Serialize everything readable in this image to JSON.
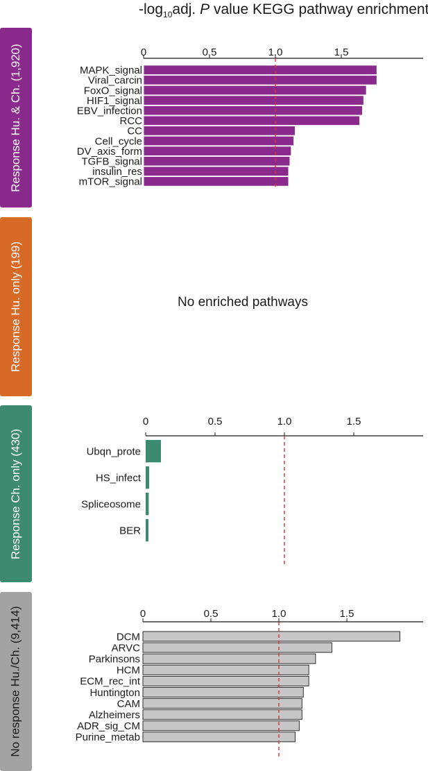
{
  "title": {
    "prefix": "-log",
    "subscript": "10",
    "middle": "adj. ",
    "italic": "P",
    "suffix": " value KEGG pathway enrichment"
  },
  "threshold_line": {
    "value": 1.0,
    "color": "#e03030",
    "style": "dashed"
  },
  "panels": [
    {
      "label": "Response Hu. & Ch. (1,920)",
      "color": "#8a2a8c"
    },
    {
      "label": "Response Hu. only (199)",
      "color": "#d86a28",
      "empty_message": "No enriched pathways"
    },
    {
      "label": "Response Ch. only (430)",
      "color": "#3e8a70"
    },
    {
      "label": "No response Hu./Ch. (9,414)",
      "color": "#a3a3a3"
    }
  ],
  "chart_data": [
    {
      "type": "bar",
      "orientation": "horizontal",
      "panel": "Response Hu. & Ch. (1,920)",
      "bar_color": "#8a2a8c",
      "bar_stroke": "#ffffff",
      "xlim": [
        0,
        1.9
      ],
      "xticks": [
        "0",
        "0.5",
        "1.0",
        "1.5"
      ],
      "tick_values": [
        0,
        0.5,
        1.0,
        1.5
      ],
      "categories": [
        "MAPK_signal",
        "Viral_carcin",
        "FoxO_signal",
        "HIF1_signal",
        "EBV_infection",
        "RCC",
        "CC",
        "Cell_cycle",
        "DV_axis_form",
        "TGFB_signal",
        "insulin_res",
        "mTOR_signal"
      ],
      "values": [
        1.77,
        1.77,
        1.69,
        1.67,
        1.66,
        1.64,
        1.15,
        1.14,
        1.12,
        1.11,
        1.1,
        1.1
      ]
    },
    {
      "type": "bar",
      "orientation": "horizontal",
      "panel": "Response Ch. only (430)",
      "bar_color": "#3e8a70",
      "bar_stroke": "#3e8a70",
      "xlim": [
        0,
        1.9
      ],
      "xticks": [
        "0",
        "0.5",
        "1.0",
        "1.5"
      ],
      "tick_values": [
        0,
        0.5,
        1.0,
        1.5
      ],
      "categories": [
        "Ubqn_prote",
        "HS_infect",
        "Spliceosome",
        "BER"
      ],
      "values": [
        0.11,
        0.025,
        0.022,
        0.02
      ]
    },
    {
      "type": "bar",
      "orientation": "horizontal",
      "panel": "No response Hu./Ch. (9,414)",
      "bar_color": "#c6c6c6",
      "bar_stroke": "#1a1a1a",
      "xlim": [
        0,
        1.9
      ],
      "xticks": [
        "0",
        "0.5",
        "1.0",
        "1.5"
      ],
      "tick_values": [
        0,
        0.5,
        1.0,
        1.5
      ],
      "categories": [
        "DCM",
        "ARVC",
        "Parkinsons",
        "HCM",
        "ECM_rec_int",
        "Huntington",
        "CAM",
        "Alzheimers",
        "ADR_sig_CM",
        "Purine_metab"
      ],
      "values": [
        1.89,
        1.39,
        1.27,
        1.22,
        1.22,
        1.18,
        1.17,
        1.17,
        1.15,
        1.12
      ]
    }
  ]
}
